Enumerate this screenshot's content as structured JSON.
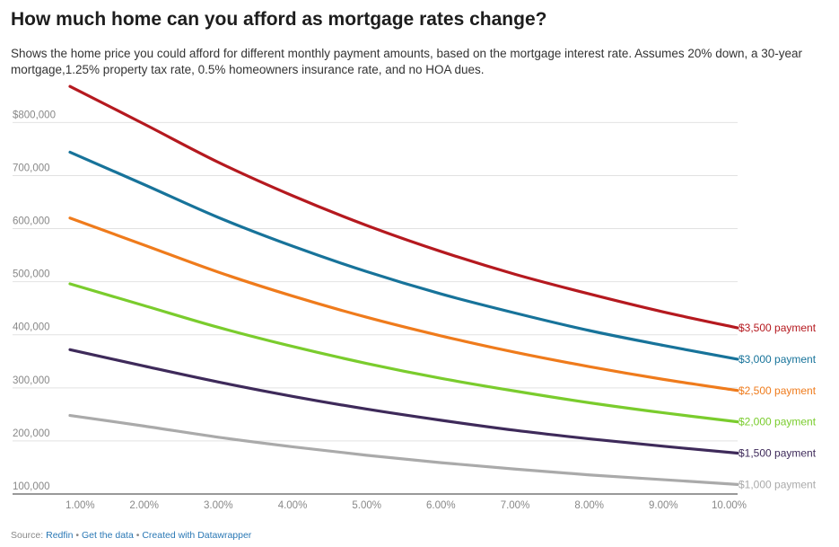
{
  "header": {
    "title": "How much home can you afford as mortgage rates change?",
    "subtitle": "Shows the home price you could afford for different monthly payment amounts, based on the mortgage interest rate. Assumes 20% down, a 30-year mortgage,1.25% property tax rate, 0.5% homeowners insurance rate, and no HOA dues."
  },
  "footer": {
    "source_label": "Source:",
    "source_link": "Redfin",
    "sep": "•",
    "data_link": "Get the data",
    "created_link": "Created with Datawrapper"
  },
  "chart_data": {
    "type": "line",
    "title": "How much home can you afford as mortgage rates change?",
    "subtitle": "Shows the home price you could afford for different monthly payment amounts, based on the mortgage interest rate. Assumes 20% down, a 30-year mortgage,1.25% property tax rate, 0.5% homeowners insurance rate, and no HOA dues.",
    "xlabel": "",
    "ylabel": "",
    "x": [
      1,
      2,
      3,
      4,
      5,
      6,
      7,
      8,
      9,
      10
    ],
    "x_tick_labels": [
      "1.00%",
      "2.00%",
      "3.00%",
      "4.00%",
      "5.00%",
      "6.00%",
      "7.00%",
      "8.00%",
      "9.00%",
      "10.00%"
    ],
    "y_ticks": [
      100000,
      200000,
      300000,
      400000,
      500000,
      600000,
      700000,
      800000
    ],
    "y_tick_labels": [
      "100,000",
      "200,000",
      "300,000",
      "400,000",
      "500,000",
      "600,000",
      "700,000",
      "$800,000"
    ],
    "xlim": [
      1,
      10
    ],
    "ylim": [
      100000,
      870000
    ],
    "grid": "horizontal",
    "legend": "direct labels at right end of lines",
    "series": [
      {
        "name": "$3,500 payment",
        "color": "#b5191f",
        "values": [
          868000,
          797000,
          725000,
          662000,
          606000,
          557000,
          514000,
          477000,
          443000,
          413000
        ]
      },
      {
        "name": "$3,000 payment",
        "color": "#17739a",
        "values": [
          744000,
          683000,
          621000,
          567000,
          519000,
          477000,
          441000,
          408000,
          380000,
          354000
        ]
      },
      {
        "name": "$2,500 payment",
        "color": "#ef7b1c",
        "values": [
          620000,
          569000,
          518000,
          473000,
          433000,
          398000,
          367000,
          340000,
          316000,
          295000
        ]
      },
      {
        "name": "$2,000 payment",
        "color": "#7acc2d",
        "values": [
          496000,
          455000,
          414000,
          378000,
          346000,
          318000,
          294000,
          272000,
          253000,
          236000
        ]
      },
      {
        "name": "$1,500 payment",
        "color": "#3e2a5a",
        "values": [
          372000,
          341000,
          311000,
          284000,
          260000,
          239000,
          220000,
          204000,
          190000,
          177000
        ]
      },
      {
        "name": "$1,000 payment",
        "color": "#aaaaaa",
        "values": [
          248000,
          228000,
          207000,
          189000,
          173000,
          159000,
          147000,
          136000,
          127000,
          118000
        ]
      }
    ]
  }
}
